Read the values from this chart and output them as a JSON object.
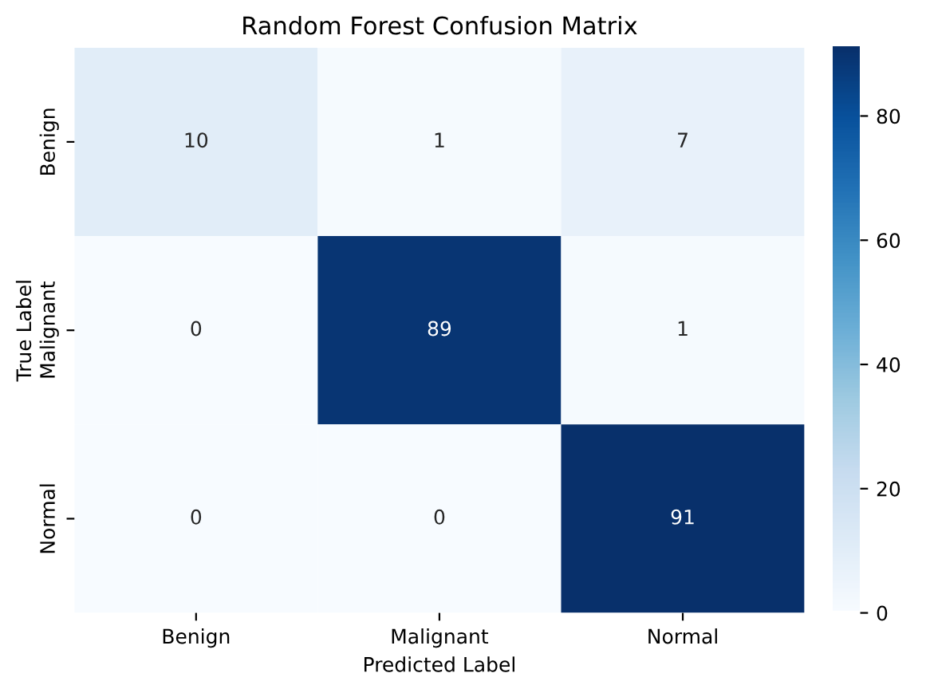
{
  "chart_data": {
    "type": "heatmap",
    "title": "Random Forest Confusion Matrix",
    "xlabel": "Predicted Label",
    "ylabel": "True Label",
    "categories": [
      "Benign",
      "Malignant",
      "Normal"
    ],
    "y_categories": [
      "Benign",
      "Malignant",
      "Normal"
    ],
    "cells": [
      [
        10,
        1,
        7
      ],
      [
        0,
        89,
        1
      ],
      [
        0,
        0,
        91
      ]
    ],
    "data_labels": true,
    "clim": [
      0,
      91
    ],
    "cticks": [
      0,
      20,
      40,
      60,
      80
    ]
  }
}
